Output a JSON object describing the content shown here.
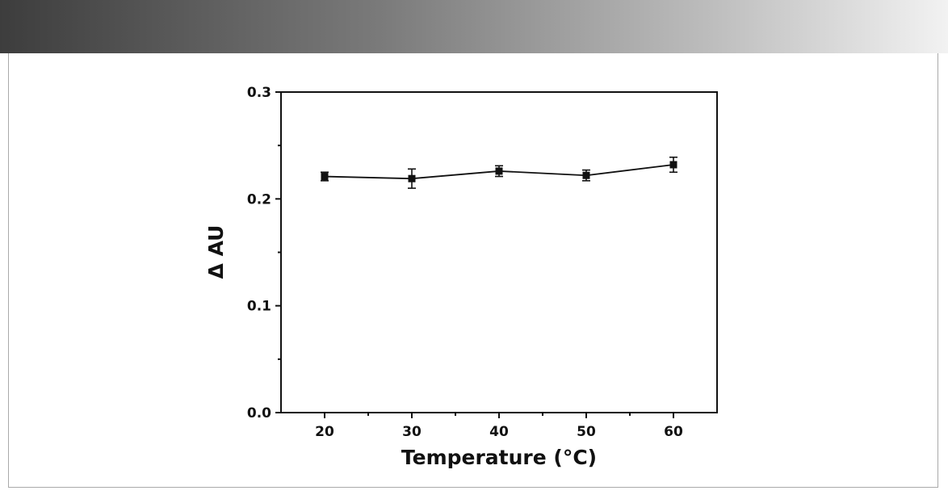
{
  "colors": {
    "header_band_start": "#3d3d3d",
    "header_band_end": "#f2f2f2",
    "frame_border": "#a9a9a9",
    "series_color": "#111111"
  },
  "chart_data": {
    "type": "line",
    "title": "",
    "xlabel": "Temperature (°C)",
    "ylabel": "Δ AU",
    "xlim": [
      15,
      65
    ],
    "ylim": [
      0.0,
      0.3
    ],
    "x_ticks": [
      20,
      30,
      40,
      50,
      60
    ],
    "x_tick_labels": [
      "20",
      "30",
      "40",
      "50",
      "60"
    ],
    "y_ticks": [
      0.0,
      0.1,
      0.2,
      0.3
    ],
    "y_tick_labels": [
      "0.0",
      "0.1",
      "0.2",
      "0.3"
    ],
    "x_minor_ticks": [
      25,
      35,
      45,
      55
    ],
    "y_minor_ticks": [
      0.05,
      0.15,
      0.25
    ],
    "grid": false,
    "legend": "none",
    "marker": "square",
    "series": [
      {
        "x": [
          20,
          30,
          40,
          50,
          60
        ],
        "y": [
          0.221,
          0.219,
          0.226,
          0.222,
          0.232
        ],
        "error": [
          0.004,
          0.009,
          0.005,
          0.005,
          0.007
        ]
      }
    ]
  }
}
